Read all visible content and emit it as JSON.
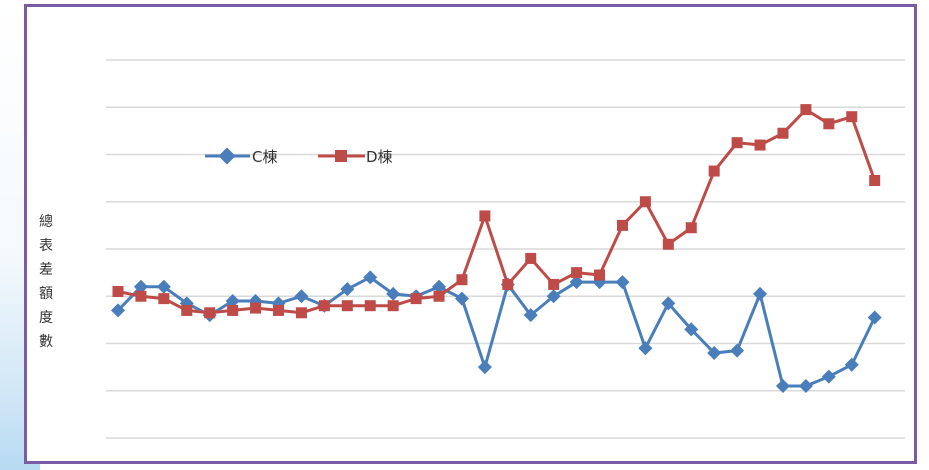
{
  "chart_data": {
    "type": "line",
    "title": "",
    "xlabel": "",
    "ylabel": "總表差額度數",
    "grid": true,
    "legend_position": "top-left",
    "x": [
      1,
      2,
      3,
      4,
      5,
      6,
      7,
      8,
      9,
      10,
      11,
      12,
      13,
      14,
      15,
      16,
      17,
      18,
      19,
      20,
      21,
      22,
      23,
      24,
      25,
      26,
      27,
      28,
      29,
      30,
      31,
      32,
      33,
      34,
      35,
      36,
      37
    ],
    "series": [
      {
        "name": "C棟",
        "color": "#4a7ebb",
        "marker": "diamond",
        "values": [
          -0.3,
          0.2,
          0.2,
          -0.15,
          -0.4,
          -0.1,
          -0.1,
          -0.15,
          0.0,
          -0.2,
          0.15,
          0.4,
          0.05,
          0.0,
          0.2,
          -0.05,
          -1.5,
          0.25,
          -0.4,
          0.0,
          0.3,
          0.3,
          0.3,
          -1.1,
          -0.15,
          -0.7,
          -1.2,
          -1.15,
          0.05,
          -1.9,
          -1.9,
          -1.7,
          -1.45,
          -0.45,
          null,
          null,
          null
        ]
      },
      {
        "name": "D棟",
        "color": "#be4b48",
        "marker": "square",
        "values": [
          0.1,
          0.0,
          -0.05,
          -0.3,
          -0.35,
          -0.3,
          -0.25,
          -0.3,
          -0.35,
          -0.2,
          -0.2,
          -0.2,
          -0.2,
          -0.05,
          0.0,
          0.35,
          1.7,
          0.25,
          0.8,
          0.25,
          0.5,
          0.45,
          1.5,
          2.0,
          1.1,
          1.45,
          2.65,
          3.25,
          3.2,
          3.45,
          3.95,
          3.65,
          3.8,
          2.45,
          null,
          null,
          null
        ]
      }
    ],
    "ylim": [
      -3,
      5
    ],
    "gridlines": [
      -3,
      -2,
      -1,
      0,
      1,
      2,
      3,
      4,
      5
    ]
  }
}
